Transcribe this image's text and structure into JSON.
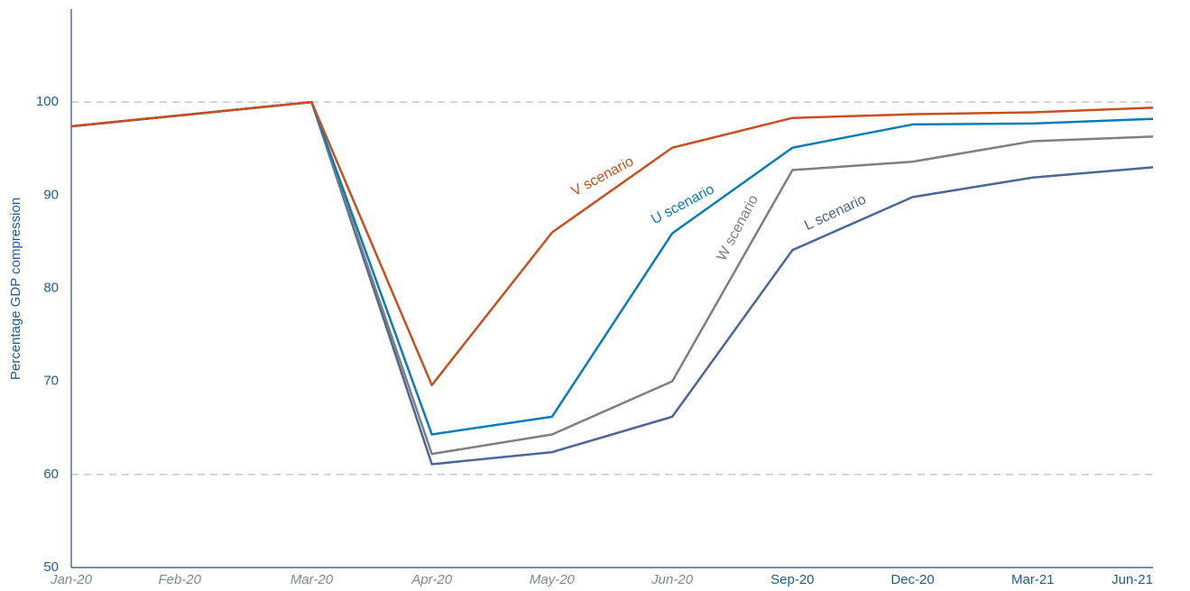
{
  "chart_data": {
    "type": "line",
    "y_label": "Percentage GDP compression",
    "categories": [
      "Jan-20",
      "Feb-20",
      "Mar-20",
      "Apr-20",
      "May-20",
      "Jun-20",
      "Sep-20",
      "Dec-20",
      "Mar-21",
      "Jun-21"
    ],
    "series": [
      {
        "name": "V scenario",
        "color": "#c8501e",
        "values": [
          97.4,
          98.7,
          100,
          69.6,
          86.0,
          95.1,
          98.3,
          98.7,
          98.9,
          99.4
        ]
      },
      {
        "name": "U scenario",
        "color": "#0a7cba",
        "values": [
          97.4,
          98.7,
          100,
          64.3,
          66.2,
          85.9,
          95.1,
          97.6,
          97.7,
          98.2
        ]
      },
      {
        "name": "W scenario",
        "color": "#7f7f7f",
        "values": [
          97.4,
          98.7,
          100,
          62.2,
          64.3,
          70.0,
          92.7,
          93.6,
          95.8,
          96.3
        ]
      },
      {
        "name": "L scenario",
        "color": "#4a6796",
        "values": [
          97.4,
          98.7,
          100,
          61.1,
          62.4,
          66.2,
          84.1,
          89.8,
          91.9,
          93.0
        ]
      }
    ],
    "ylim": [
      50,
      110
    ],
    "yticks": [
      50,
      60,
      70,
      80,
      90,
      100
    ],
    "gridlines": [
      60,
      100
    ]
  }
}
